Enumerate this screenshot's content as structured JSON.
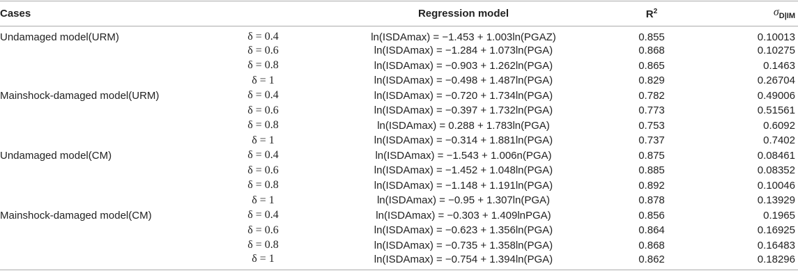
{
  "header": {
    "cases": "Cases",
    "model": "Regression model",
    "r2": {
      "base": "R",
      "sup": "2"
    },
    "sigma": {
      "base": "σ",
      "sub": "D|IM"
    }
  },
  "groups": [
    {
      "case": "Undamaged model(URM)",
      "rows": [
        [
          "δ = 0.4",
          "ln(ISDAmax) = −1.453 + 1.003ln(PGAZ)",
          "0.855",
          "0.10013"
        ],
        [
          "δ = 0.6",
          "ln(ISDAmax) = −1.284 + 1.073ln(PGA)",
          "0.868",
          "0.10275"
        ],
        [
          "δ = 0.8",
          "ln(ISDAmax) = −0.903 + 1.262ln(PGA)",
          "0.865",
          "0.1463"
        ],
        [
          "δ = 1",
          "ln(ISDAmax) = −0.498 + 1.487ln(PGA)",
          "0.829",
          "0.26704"
        ]
      ]
    },
    {
      "case": "Mainshock-damaged model(URM)",
      "rows": [
        [
          "δ = 0.4",
          "ln(ISDAmax) = −0.720 + 1.734ln(PGA)",
          "0.782",
          "0.49006"
        ],
        [
          "δ = 0.6",
          "ln(ISDAmax) = −0.397 + 1.732ln(PGA)",
          "0.773",
          "0.51561"
        ],
        [
          "δ = 0.8",
          "ln(ISDAmax) = 0.288 + 1.783ln(PGA)",
          "0.753",
          "0.6092"
        ],
        [
          "δ = 1",
          "ln(ISDAmax) = −0.314 + 1.881ln(PGA)",
          "0.737",
          "0.7402"
        ]
      ]
    },
    {
      "case": "Undamaged model(CM)",
      "rows": [
        [
          "δ = 0.4",
          "ln(ISDAmax) = −1.543 + 1.006n(PGA)",
          "0.875",
          "0.08461"
        ],
        [
          "δ = 0.6",
          "ln(ISDAmax) = −1.452 + 1.048ln(PGA)",
          "0.885",
          "0.08352"
        ],
        [
          "δ = 0.8",
          "ln(ISDAmax) = −1.148 + 1.191ln(PGA)",
          "0.892",
          "0.10046"
        ],
        [
          "δ = 1",
          "ln(ISDAmax) = −0.95 + 1.307ln(PGA)",
          "0.878",
          "0.13929"
        ]
      ]
    },
    {
      "case": "Mainshock-damaged model(CM)",
      "rows": [
        [
          "δ = 0.4",
          "ln(ISDAmax) = −0.303 + 1.409lnPGA)",
          "0.856",
          "0.1965"
        ],
        [
          "δ = 0.6",
          "ln(ISDAmax) = −0.623 + 1.356ln(PGA)",
          "0.864",
          "0.16925"
        ],
        [
          "δ = 0.8",
          "ln(ISDAmax) = −0.735 + 1.358ln(PGA)",
          "0.868",
          "0.16483"
        ],
        [
          "δ = 1",
          "ln(ISDAmax) = −0.754 + 1.394ln(PGA)",
          "0.862",
          "0.18296"
        ]
      ]
    }
  ]
}
